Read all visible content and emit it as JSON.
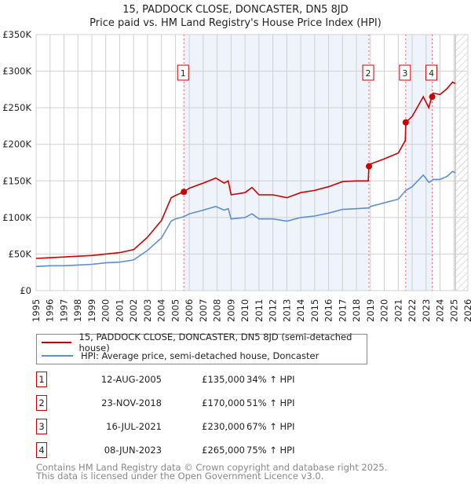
{
  "chart_data": {
    "type": "line",
    "title": "15, PADDOCK CLOSE, DONCASTER, DN5 8JD",
    "subtitle": "Price paid vs. HM Land Registry's House Price Index (HPI)",
    "xlabel": "",
    "ylabel": "",
    "xlim": [
      1995,
      2026
    ],
    "ylim": [
      0,
      350000
    ],
    "x_ticks": [
      "1995",
      "1996",
      "1997",
      "1998",
      "1999",
      "2000",
      "2001",
      "2002",
      "2003",
      "2004",
      "2005",
      "2006",
      "2007",
      "2008",
      "2009",
      "2010",
      "2011",
      "2012",
      "2013",
      "2014",
      "2015",
      "2016",
      "2017",
      "2018",
      "2019",
      "2020",
      "2021",
      "2022",
      "2023",
      "2024",
      "2025",
      "2026"
    ],
    "y_ticks": [
      {
        "value": 0,
        "label": "£0"
      },
      {
        "value": 50000,
        "label": "£50K"
      },
      {
        "value": 100000,
        "label": "£100K"
      },
      {
        "value": 150000,
        "label": "£150K"
      },
      {
        "value": 200000,
        "label": "£200K"
      },
      {
        "value": 250000,
        "label": "£250K"
      },
      {
        "value": 300000,
        "label": "£300K"
      },
      {
        "value": 350000,
        "label": "£350K"
      }
    ],
    "grid": true,
    "x": [
      1995,
      1996,
      1997,
      1998,
      1999,
      2000,
      2001,
      2002,
      2003,
      2004,
      2004.7,
      2005,
      2005.6,
      2006,
      2007,
      2007.9,
      2008.5,
      2008.8,
      2009,
      2010,
      2010.5,
      2011,
      2012,
      2013,
      2014,
      2015,
      2016,
      2017,
      2018,
      2018.85,
      2018.9,
      2019,
      2020,
      2021,
      2021.5,
      2021.55,
      2022,
      2022.8,
      2023.2,
      2023.4,
      2023.5,
      2024,
      2024.5,
      2024.9,
      2025.1
    ],
    "series": [
      {
        "name": "15, PADDOCK CLOSE, DONCASTER, DN5 8JD (semi-detached house)",
        "color": "#cc0000",
        "values": [
          44000,
          45000,
          46000,
          47000,
          48000,
          50000,
          52000,
          56000,
          73000,
          96000,
          127000,
          130000,
          135000,
          140000,
          147000,
          154000,
          147000,
          150000,
          131000,
          134000,
          141000,
          131000,
          131000,
          127000,
          134000,
          137000,
          142000,
          149000,
          150000,
          150000,
          170000,
          173000,
          180000,
          188000,
          205000,
          230000,
          238000,
          265000,
          250000,
          265000,
          270000,
          268000,
          276000,
          285000,
          283000
        ]
      },
      {
        "name": "HPI: Average price, semi-detached house, Doncaster",
        "color": "#5b8fd4",
        "values": [
          33000,
          34000,
          34000,
          35000,
          36000,
          38000,
          39000,
          42000,
          55000,
          72000,
          95000,
          98000,
          101000,
          105000,
          110000,
          115000,
          110000,
          112000,
          98000,
          100000,
          105000,
          98000,
          98000,
          95000,
          100000,
          102000,
          106000,
          111000,
          112000,
          113000,
          113000,
          115000,
          120000,
          125000,
          136000,
          137000,
          142000,
          158000,
          148000,
          150000,
          152000,
          152000,
          156000,
          163000,
          161000
        ]
      }
    ],
    "sales": [
      {
        "num": "1",
        "year": 2005.61,
        "price": 135000,
        "date": "12-AUG-2005",
        "price_label": "£135,000",
        "hpi": "34% ↑ HPI"
      },
      {
        "num": "2",
        "year": 2018.9,
        "price": 170000,
        "date": "23-NOV-2018",
        "price_label": "£170,000",
        "hpi": "51% ↑ HPI"
      },
      {
        "num": "3",
        "year": 2021.54,
        "price": 230000,
        "date": "16-JUL-2021",
        "price_label": "£230,000",
        "hpi": "67% ↑ HPI"
      },
      {
        "num": "4",
        "year": 2023.44,
        "price": 265000,
        "date": "08-JUN-2023",
        "price_label": "£265,000",
        "hpi": "75% ↑ HPI"
      }
    ],
    "forecast_start": 2025.1,
    "legend_position": "bottom"
  },
  "footer": {
    "line1": "Contains HM Land Registry data © Crown copyright and database right 2025.",
    "line2": "This data is licensed under the Open Government Licence v3.0."
  }
}
